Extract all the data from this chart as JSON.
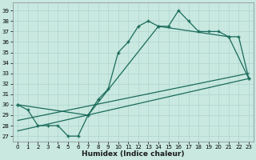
{
  "xlabel": "Humidex (Indice chaleur)",
  "bg_color": "#c8e8e0",
  "line_color": "#1a6b5a",
  "grid_color": "#afd4cc",
  "xlim": [
    -0.5,
    23.5
  ],
  "ylim": [
    26.5,
    39.8
  ],
  "xticks": [
    0,
    1,
    2,
    3,
    4,
    5,
    6,
    7,
    8,
    9,
    10,
    11,
    12,
    13,
    14,
    15,
    16,
    17,
    18,
    19,
    20,
    21,
    22,
    23
  ],
  "yticks": [
    27,
    28,
    29,
    30,
    31,
    32,
    33,
    34,
    35,
    36,
    37,
    38,
    39
  ],
  "series1_x": [
    0,
    1,
    2,
    3,
    4,
    5,
    6,
    7,
    8,
    9,
    10,
    11,
    12,
    13,
    14,
    15,
    16,
    17,
    18,
    19,
    20,
    21,
    22,
    23
  ],
  "series1_y": [
    30,
    29.5,
    28,
    28,
    28,
    27,
    27,
    29,
    30.5,
    31.5,
    35,
    36,
    37.5,
    38,
    37.5,
    37.5,
    39,
    38,
    37,
    37,
    37,
    36.5,
    36.5,
    32.5
  ],
  "series2_x": [
    0,
    7,
    14,
    21,
    23
  ],
  "series2_y": [
    30,
    29,
    37.5,
    36.5,
    32.5
  ],
  "series3_x": [
    0,
    23
  ],
  "series3_y": [
    27.5,
    32.5
  ],
  "series4_x": [
    0,
    23
  ],
  "series4_y": [
    28.5,
    33.0
  ]
}
